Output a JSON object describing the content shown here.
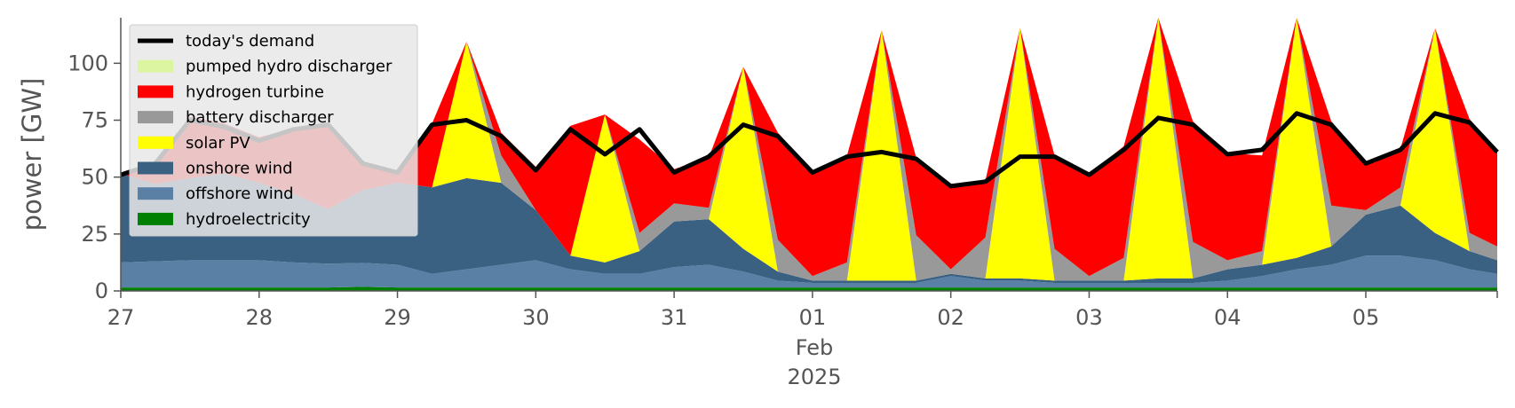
{
  "chart_data": {
    "type": "area",
    "ylabel": "power [GW]",
    "ylim": [
      0,
      120
    ],
    "yticks": [
      0,
      25,
      50,
      75,
      100
    ],
    "xlim": [
      0,
      9.95
    ],
    "xticks": [
      {
        "x": 0,
        "label": "27"
      },
      {
        "x": 1,
        "label": "28"
      },
      {
        "x": 2,
        "label": "29"
      },
      {
        "x": 3,
        "label": "30"
      },
      {
        "x": 4,
        "label": "31"
      },
      {
        "x": 5,
        "label": "01"
      },
      {
        "x": 6,
        "label": "02"
      },
      {
        "x": 7,
        "label": "03"
      },
      {
        "x": 8,
        "label": "04"
      },
      {
        "x": 9,
        "label": "05"
      }
    ],
    "xlabel_lines": [
      "Feb",
      "2025"
    ],
    "xlabel_at": 5,
    "x_unit": "days from 2025-01-27",
    "legend_position": "top-left",
    "colors": {
      "hydroelectricity": "#008000",
      "offshore_wind": "#5b80a5",
      "onshore_wind": "#3b6182",
      "solar": "#ffff00",
      "battery": "#999999",
      "hydrogen": "#ff0000",
      "demand": "#000000",
      "pumped": "#dcf5a0"
    },
    "legend": [
      {
        "label": "today's demand",
        "kind": "line",
        "color": "#000000"
      },
      {
        "label": "pumped hydro discharger",
        "kind": "patch",
        "color": "#dcf5a0"
      },
      {
        "label": "hydrogen turbine",
        "kind": "patch",
        "color": "#ff0000"
      },
      {
        "label": "battery discharger",
        "kind": "patch",
        "color": "#999999"
      },
      {
        "label": "solar PV",
        "kind": "patch",
        "color": "#ffff00"
      },
      {
        "label": "onshore wind",
        "kind": "patch",
        "color": "#3b6182"
      },
      {
        "label": "offshore wind",
        "kind": "patch",
        "color": "#5b80a5"
      },
      {
        "label": "hydroelectricity",
        "kind": "patch",
        "color": "#008000"
      }
    ],
    "x": [
      0,
      0.25,
      0.5,
      0.75,
      1,
      1.25,
      1.5,
      1.75,
      2,
      2.25,
      2.5,
      2.75,
      3,
      3.25,
      3.5,
      3.75,
      4,
      4.25,
      4.5,
      4.75,
      5,
      5.25,
      5.5,
      5.75,
      6,
      6.25,
      6.5,
      6.75,
      7,
      7.25,
      7.5,
      7.75,
      8,
      8.25,
      8.5,
      8.75,
      9,
      9.25,
      9.5,
      9.75,
      9.95
    ],
    "demand": [
      51,
      56,
      75,
      72,
      66,
      71,
      73,
      56,
      52,
      73,
      75,
      68,
      53,
      71,
      60,
      71,
      52,
      59,
      73,
      68,
      52,
      59,
      61,
      58,
      46,
      48,
      59,
      59,
      51,
      62,
      76,
      73,
      60,
      62,
      78,
      73,
      56,
      62,
      78,
      74,
      61
    ],
    "series": [
      {
        "name": "hydroelectricity",
        "values": [
          1.5,
          1.5,
          1.5,
          1.5,
          1.5,
          1.5,
          1.5,
          1.8,
          1.5,
          1.5,
          1.5,
          1.5,
          1.5,
          1.5,
          1.5,
          1.5,
          1.5,
          1.5,
          1.5,
          1.5,
          1.5,
          1.5,
          1.5,
          1.5,
          1.5,
          1.5,
          1.5,
          1.5,
          1.5,
          1.5,
          1.5,
          1.5,
          1.5,
          1.5,
          1.5,
          1.5,
          1.5,
          1.5,
          1.5,
          1.5,
          1.5
        ]
      },
      {
        "name": "offshore wind",
        "values": [
          11,
          11.5,
          12,
          12,
          12,
          11,
          10.5,
          10.5,
          10,
          6,
          8,
          10,
          12,
          8,
          6,
          6,
          9,
          10,
          7,
          3,
          2,
          2,
          2,
          2,
          5,
          3,
          3,
          2,
          2,
          2,
          2,
          2,
          3,
          5,
          8,
          10,
          14,
          14,
          12,
          8,
          6
        ]
      },
      {
        "name": "onshore wind",
        "values": [
          39,
          34,
          36,
          38,
          34,
          30,
          24,
          32,
          36,
          38,
          40,
          36,
          22,
          6,
          5,
          10,
          20,
          20,
          10,
          4,
          1,
          1,
          1,
          1,
          1,
          1,
          1,
          1,
          1,
          1,
          2,
          2,
          5,
          5,
          5,
          8,
          18,
          22,
          12,
          8,
          6
        ]
      },
      {
        "name": "solar PV",
        "values": [
          0,
          0,
          0,
          0,
          0,
          0,
          0,
          0,
          0,
          0,
          60,
          0,
          0,
          0,
          65,
          0,
          0,
          0,
          80,
          0,
          0,
          0,
          110,
          0,
          0,
          0,
          110,
          0,
          0,
          0,
          120,
          0,
          0,
          0,
          120,
          0,
          0,
          0,
          90,
          0,
          0
        ]
      },
      {
        "name": "battery discharger",
        "values": [
          0,
          0,
          0,
          0,
          0,
          0,
          0,
          0,
          0,
          0,
          0,
          12,
          0,
          0,
          0,
          8,
          8,
          5,
          0,
          14,
          2,
          8,
          0,
          20,
          2,
          18,
          0,
          14,
          2,
          10,
          0,
          16,
          4,
          6,
          0,
          18,
          2,
          8,
          0,
          8,
          6
        ]
      },
      {
        "name": "hydrogen turbine",
        "values": [
          0,
          10,
          27,
          22,
          20,
          29,
          37,
          12,
          5,
          28,
          0,
          10,
          19,
          57,
          0,
          41,
          15,
          22,
          0,
          47,
          46,
          47,
          0,
          34,
          37,
          25,
          0,
          41,
          45,
          49,
          0,
          53,
          47,
          42,
          0,
          37,
          21,
          17,
          0,
          50,
          42
        ]
      }
    ]
  }
}
